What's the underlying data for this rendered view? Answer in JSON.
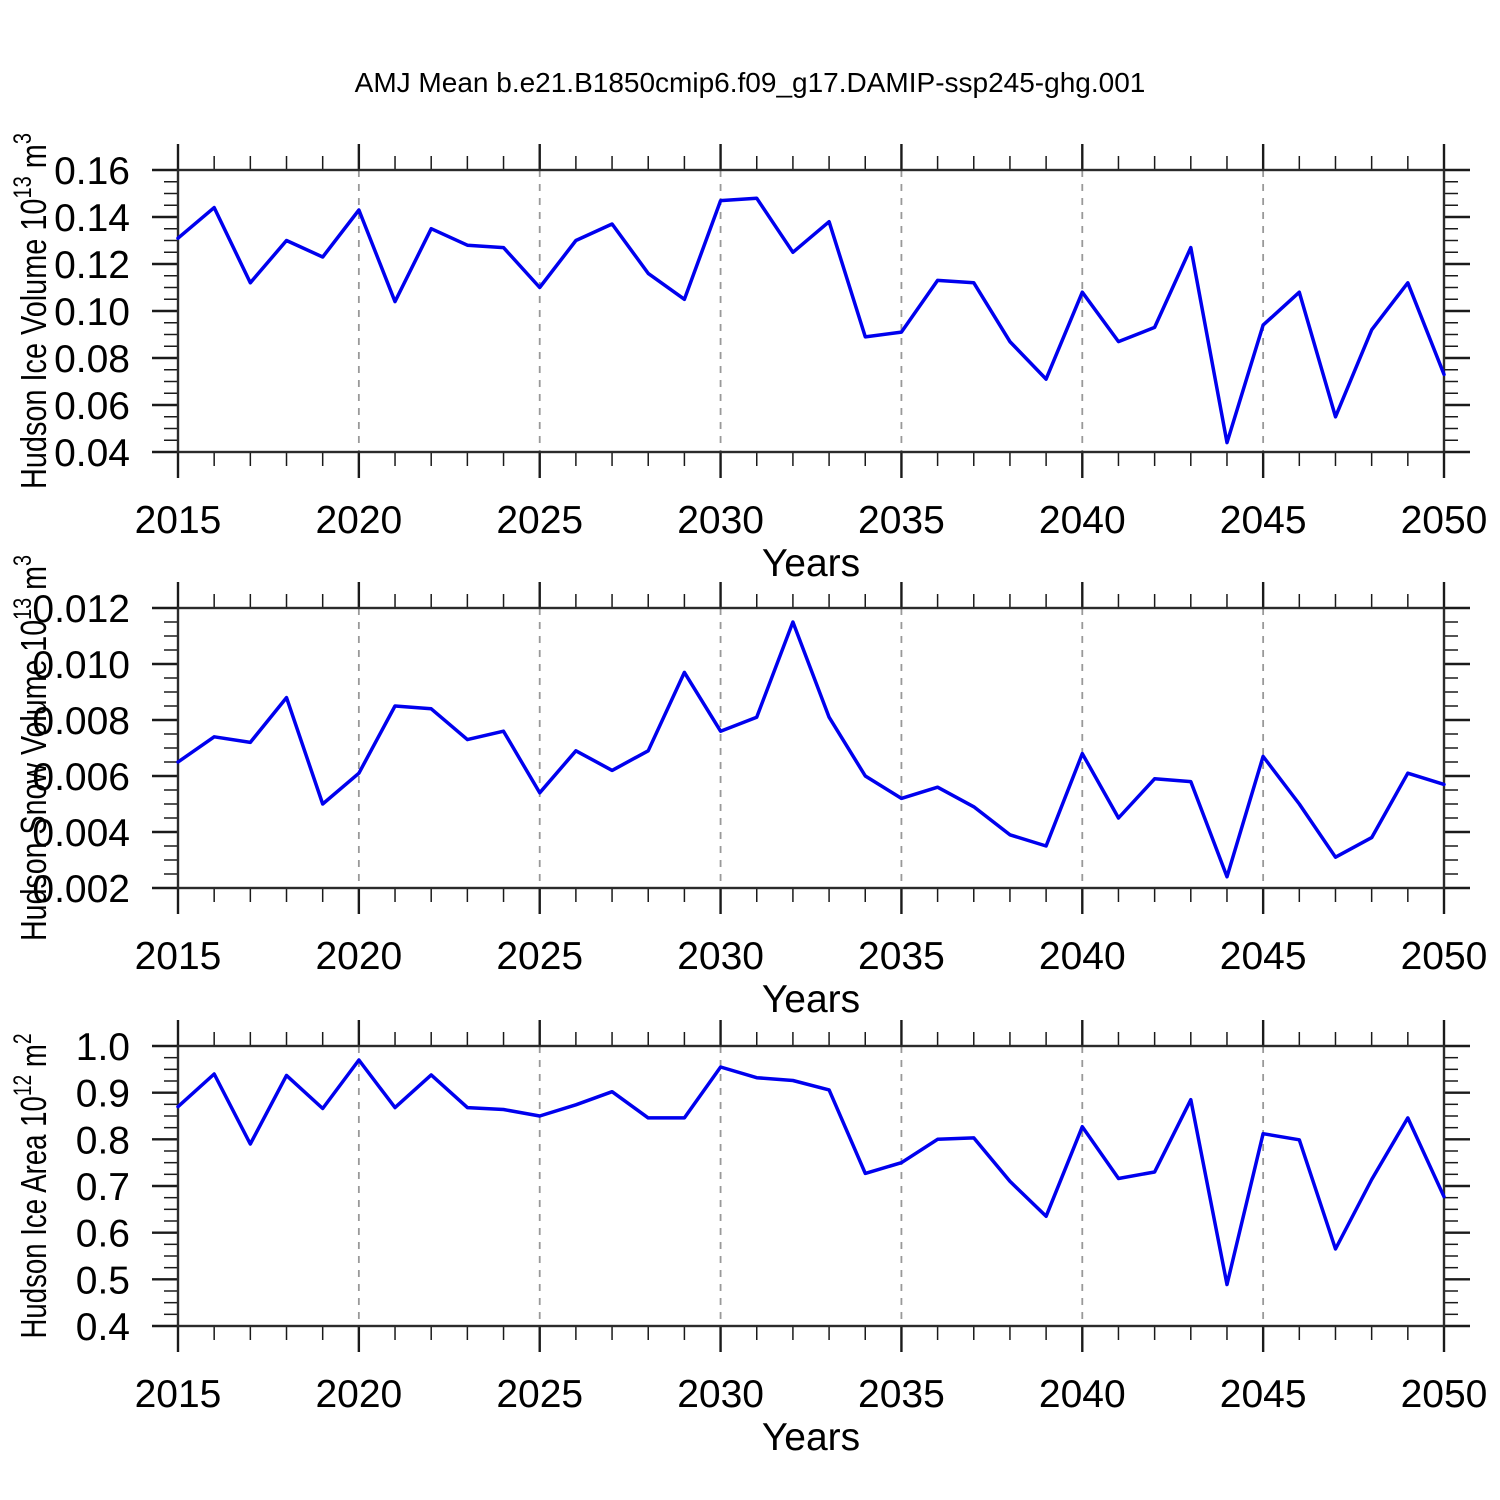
{
  "title": "AMJ Mean b.e21.B1850cmip6.f09_g17.DAMIP-ssp245-ghg.001",
  "colors": {
    "line": "#0000EE",
    "grid": "#999999",
    "frame": "#2B2B2B",
    "tick": "#1A1A1A",
    "text": "#000000",
    "background": "#FFFFFF"
  },
  "chart_data": [
    {
      "id": "hudson-ice-volume",
      "type": "line",
      "series_name": "Hudson Ice Volume",
      "xlabel": "Years",
      "ylabel": "Hudson Ice Volume 10^13 m^3",
      "ylabel_rich": [
        {
          "t": "Hudson Ice Volume 10"
        },
        {
          "s": "13"
        },
        {
          "t": " m"
        },
        {
          "s": "3"
        }
      ],
      "xlim": [
        2015,
        2050
      ],
      "ylim": [
        0.04,
        0.16
      ],
      "xtick_major": 5,
      "xtick_minor": 1,
      "ytick_major": 0.02,
      "ytick_minor": 0.005,
      "ytick_labels": [
        "0.16",
        "0.14",
        "0.12",
        "0.10",
        "0.08",
        "0.06",
        "0.04"
      ],
      "xtick_labels": [
        "2015",
        "2020",
        "2025",
        "2030",
        "2035",
        "2040",
        "2045",
        "2050"
      ],
      "grid_x": [
        2020,
        2025,
        2030,
        2035,
        2040,
        2045
      ],
      "grid": "vertical-dashed",
      "legend": "none",
      "x": [
        2015,
        2016,
        2017,
        2018,
        2019,
        2020,
        2021,
        2022,
        2023,
        2024,
        2025,
        2026,
        2027,
        2028,
        2029,
        2030,
        2031,
        2032,
        2033,
        2034,
        2035,
        2036,
        2037,
        2038,
        2039,
        2040,
        2041,
        2042,
        2043,
        2044,
        2045,
        2046,
        2047,
        2048,
        2049,
        2050
      ],
      "values": [
        0.131,
        0.144,
        0.112,
        0.13,
        0.123,
        0.143,
        0.104,
        0.135,
        0.128,
        0.127,
        0.11,
        0.13,
        0.137,
        0.116,
        0.105,
        0.147,
        0.148,
        0.125,
        0.138,
        0.089,
        0.091,
        0.113,
        0.112,
        0.087,
        0.071,
        0.108,
        0.087,
        0.093,
        0.127,
        0.044,
        0.094,
        0.108,
        0.055,
        0.092,
        0.112,
        0.073
      ]
    },
    {
      "id": "hudson-snow-volume",
      "type": "line",
      "series_name": "Hudson Snow Volume",
      "xlabel": "Years",
      "ylabel": "Hudson Snow Volume 10^13 m^3",
      "ylabel_rich": [
        {
          "t": "Hudson Snow Volume 10"
        },
        {
          "s": "13"
        },
        {
          "t": " m"
        },
        {
          "s": "3"
        }
      ],
      "xlim": [
        2015,
        2050
      ],
      "ylim": [
        0.002,
        0.012
      ],
      "xtick_major": 5,
      "xtick_minor": 1,
      "ytick_major": 0.002,
      "ytick_minor": 0.0005,
      "ytick_labels": [
        "0.012",
        "0.010",
        "0.008",
        "0.006",
        "0.004",
        "0.002"
      ],
      "xtick_labels": [
        "2015",
        "2020",
        "2025",
        "2030",
        "2035",
        "2040",
        "2045",
        "2050"
      ],
      "grid_x": [
        2020,
        2025,
        2030,
        2035,
        2040,
        2045
      ],
      "grid": "vertical-dashed",
      "legend": "none",
      "x": [
        2015,
        2016,
        2017,
        2018,
        2019,
        2020,
        2021,
        2022,
        2023,
        2024,
        2025,
        2026,
        2027,
        2028,
        2029,
        2030,
        2031,
        2032,
        2033,
        2034,
        2035,
        2036,
        2037,
        2038,
        2039,
        2040,
        2041,
        2042,
        2043,
        2044,
        2045,
        2046,
        2047,
        2048,
        2049,
        2050
      ],
      "values": [
        0.0065,
        0.0074,
        0.0072,
        0.0088,
        0.005,
        0.0061,
        0.0085,
        0.0084,
        0.0073,
        0.0076,
        0.0054,
        0.0069,
        0.0062,
        0.0069,
        0.0097,
        0.0076,
        0.0081,
        0.0115,
        0.0081,
        0.006,
        0.0052,
        0.0056,
        0.0049,
        0.0039,
        0.0035,
        0.0068,
        0.0045,
        0.0059,
        0.0058,
        0.0024,
        0.0067,
        0.005,
        0.0031,
        0.0038,
        0.0061,
        0.0057
      ]
    },
    {
      "id": "hudson-ice-area",
      "type": "line",
      "series_name": "Hudson Ice Area",
      "xlabel": "Years",
      "ylabel": "Hudson Ice Area 10^12 m^2",
      "ylabel_rich": [
        {
          "t": "Hudson Ice Area 10"
        },
        {
          "s": "12"
        },
        {
          "t": " m"
        },
        {
          "s": "2"
        }
      ],
      "xlim": [
        2015,
        2050
      ],
      "ylim": [
        0.4,
        1.0
      ],
      "xtick_major": 5,
      "xtick_minor": 1,
      "ytick_major": 0.1,
      "ytick_minor": 0.025,
      "ytick_labels": [
        "1.0",
        "0.9",
        "0.8",
        "0.7",
        "0.6",
        "0.5",
        "0.4"
      ],
      "xtick_labels": [
        "2015",
        "2020",
        "2025",
        "2030",
        "2035",
        "2040",
        "2045",
        "2050"
      ],
      "grid_x": [
        2020,
        2025,
        2030,
        2035,
        2040,
        2045
      ],
      "grid": "vertical-dashed",
      "legend": "none",
      "x": [
        2015,
        2016,
        2017,
        2018,
        2019,
        2020,
        2021,
        2022,
        2023,
        2024,
        2025,
        2026,
        2027,
        2028,
        2029,
        2030,
        2031,
        2032,
        2033,
        2034,
        2035,
        2036,
        2037,
        2038,
        2039,
        2040,
        2041,
        2042,
        2043,
        2044,
        2045,
        2046,
        2047,
        2048,
        2049,
        2050
      ],
      "values": [
        0.87,
        0.94,
        0.79,
        0.937,
        0.866,
        0.97,
        0.868,
        0.938,
        0.868,
        0.864,
        0.85,
        0.874,
        0.902,
        0.846,
        0.846,
        0.955,
        0.932,
        0.926,
        0.906,
        0.727,
        0.75,
        0.8,
        0.803,
        0.71,
        0.635,
        0.827,
        0.716,
        0.73,
        0.885,
        0.489,
        0.812,
        0.799,
        0.565,
        0.714,
        0.846,
        0.677
      ]
    }
  ]
}
